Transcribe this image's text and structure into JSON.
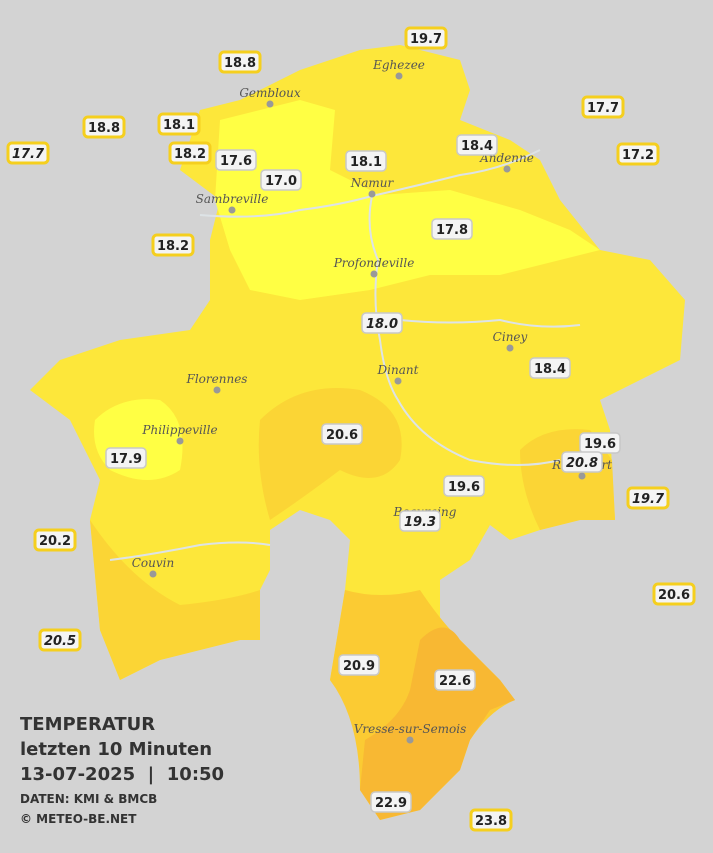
{
  "title": {
    "heading": "TEMPERATUR",
    "period": "letzten 10 Minuten",
    "timestamp": "13-07-2025  |  10:50",
    "source": "DATEN: KMI & BMCB",
    "copyright": "© METEO-BE.NET"
  },
  "cities": [
    "Eghezee",
    "Gembloux",
    "Andenne",
    "Namur",
    "Sambreville",
    "Profondeville",
    "Ciney",
    "Dinant",
    "Florennes",
    "Philippeville",
    "Beauraing",
    "Rochefort",
    "Couvin",
    "Vresse-sur-Semois"
  ],
  "stations": [
    {
      "label": "19.7"
    },
    {
      "label": "18.8"
    },
    {
      "label": "17.7"
    },
    {
      "label": "18.8"
    },
    {
      "label": "18.1"
    },
    {
      "label": "17.7",
      "italic": true
    },
    {
      "label": "18.4"
    },
    {
      "label": "17.2"
    },
    {
      "label": "18.2"
    },
    {
      "label": "17.6"
    },
    {
      "label": "18.1"
    },
    {
      "label": "17.0"
    },
    {
      "label": "17.8"
    },
    {
      "label": "18.2"
    },
    {
      "label": "18.0",
      "italic": true
    },
    {
      "label": "18.4"
    },
    {
      "label": "20.6"
    },
    {
      "label": "19.6"
    },
    {
      "label": "20.8",
      "italic": true
    },
    {
      "label": "17.9"
    },
    {
      "label": "19.6"
    },
    {
      "label": "19.7",
      "italic": true
    },
    {
      "label": "19.3",
      "italic": true
    },
    {
      "label": "20.2"
    },
    {
      "label": "20.6"
    },
    {
      "label": "20.5",
      "italic": true
    },
    {
      "label": "20.9"
    },
    {
      "label": "22.6"
    },
    {
      "label": "22.9"
    },
    {
      "label": "23.8"
    }
  ]
}
